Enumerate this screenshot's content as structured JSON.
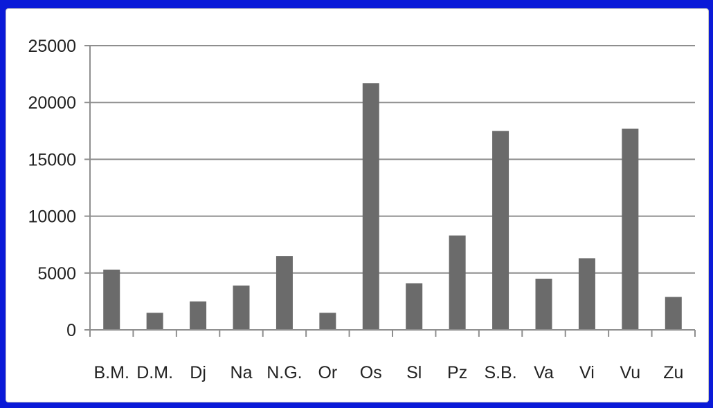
{
  "colors": {
    "background": "#0a1ad8",
    "plot_area": "#ffffff",
    "bar": "#6b6b6b",
    "gridline": "#8e8e8e",
    "axis": "#8e8e8e",
    "text": "#222222"
  },
  "chart_data": {
    "type": "bar",
    "title": "",
    "xlabel": "",
    "ylabel": "",
    "categories": [
      "B.M.",
      "D.M.",
      "Dj",
      "Na",
      "N.G.",
      "Or",
      "Os",
      "Sl",
      "Pz",
      "S.B.",
      "Va",
      "Vi",
      "Vu",
      "Zu"
    ],
    "values": [
      5300,
      1500,
      2500,
      3900,
      6500,
      1500,
      21700,
      4100,
      8300,
      17500,
      4500,
      6300,
      17700,
      2900
    ],
    "ylim": [
      0,
      25000
    ],
    "yticks": [
      0,
      5000,
      10000,
      15000,
      20000,
      25000
    ],
    "ytick_labels": [
      "0",
      "5000",
      "10000",
      "15000",
      "20000",
      "25000"
    ],
    "grid": "horizontal",
    "legend": "none"
  }
}
